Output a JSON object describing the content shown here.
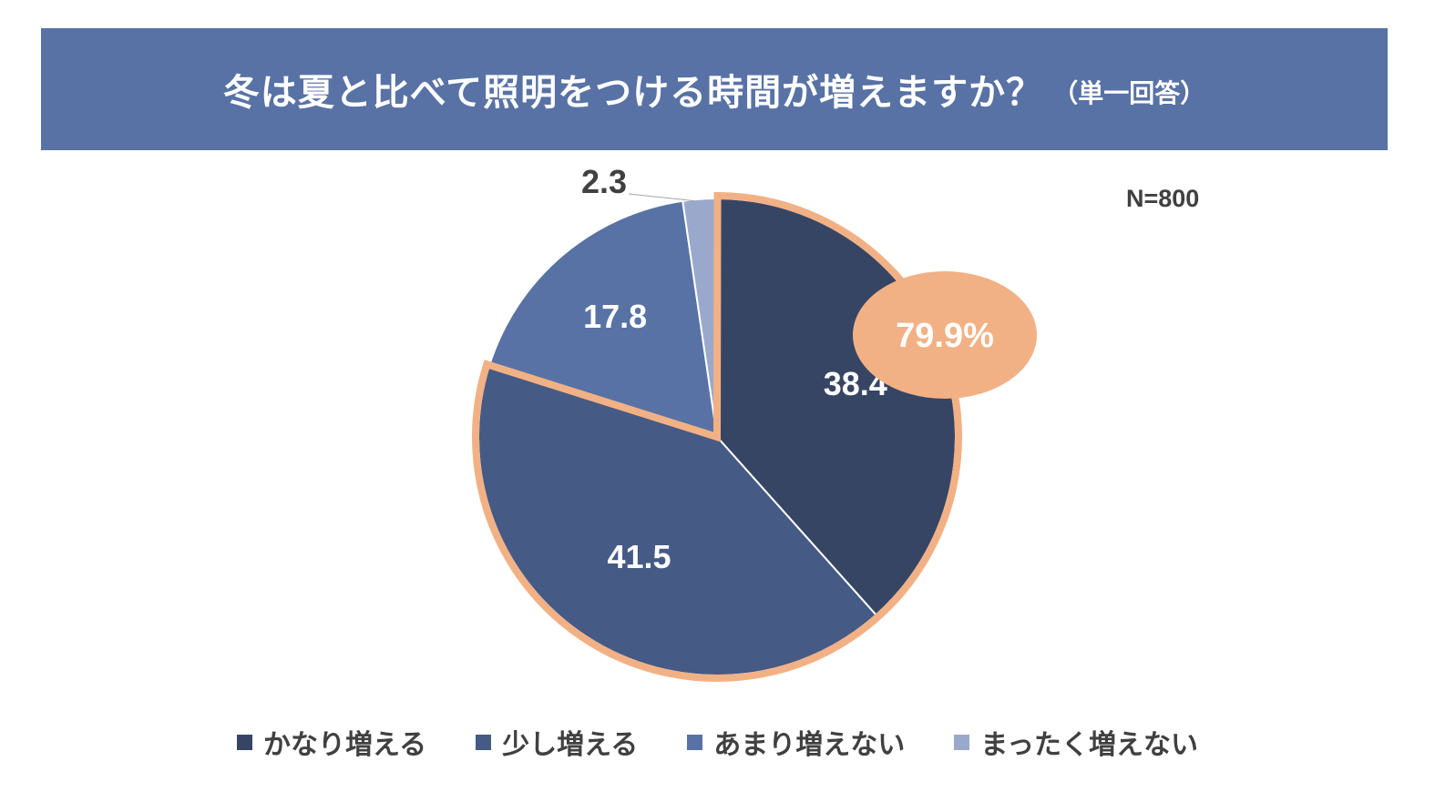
{
  "header": {
    "title": "冬は夏と比べて照明をつける時間が増えますか？",
    "subtitle": "（単一回答）"
  },
  "sample_size": "N=800",
  "colors": {
    "banner": "#5872a5",
    "highlight": "#f2b185",
    "slice_1": "#374565",
    "slice_2": "#455a85",
    "slice_3": "#5872a5",
    "slice_4": "#9aa9cb"
  },
  "chart_data": {
    "type": "pie",
    "title": "冬は夏と比べて照明をつける時間が増えますか？",
    "subtitle": "（単一回答）",
    "categories": [
      "かなり増える",
      "少し増える",
      "あまり増えない",
      "まったく増えない"
    ],
    "values": [
      38.4,
      41.5,
      17.8,
      2.3
    ],
    "data_labels": [
      "38.4",
      "41.5",
      "17.8",
      "2.3"
    ],
    "start_angle": "12 o'clock, clockwise",
    "highlight": {
      "categories": [
        "かなり増える",
        "少し増える"
      ],
      "total_label": "79.9%"
    },
    "legend": "bottom",
    "grid": false
  }
}
